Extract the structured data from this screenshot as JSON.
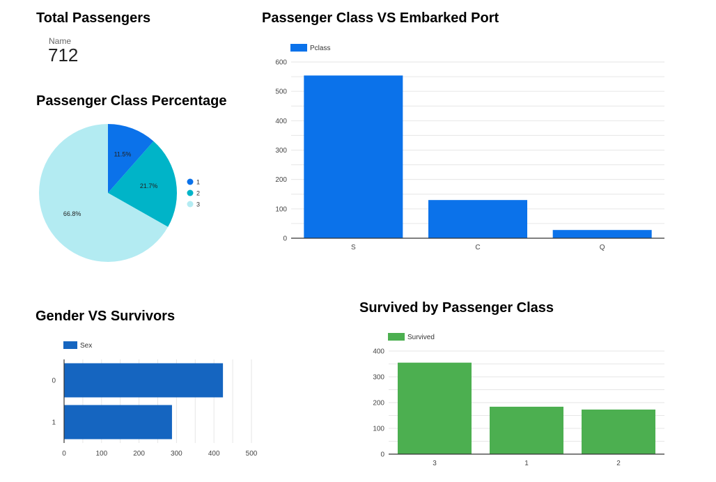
{
  "scorecard": {
    "title": "Total Passengers",
    "label": "Name",
    "value": "712"
  },
  "pie_title": "Passenger Class Percentage",
  "bar1_title": "Passenger Class VS Embarked Port",
  "hbar_title": "Gender VS Survivors",
  "bar2_title": "Survived by Passenger Class",
  "colors": {
    "blue": "#0b72ea",
    "teal": "#00b4c8",
    "lightcyan": "#b3ebf2",
    "hbar": "#1565c0",
    "green": "#4caf50",
    "grid": "#e6e6e6",
    "axis": "#333333",
    "tick": "#444444"
  },
  "chart_data": [
    {
      "type": "pie",
      "title": "Passenger Class Percentage",
      "slices": [
        {
          "label": "1",
          "value": 11.5,
          "display": "11.5%",
          "color": "#0b72ea"
        },
        {
          "label": "2",
          "value": 21.7,
          "display": "21.7%",
          "color": "#00b4c8"
        },
        {
          "label": "3",
          "value": 66.8,
          "display": "66.8%",
          "color": "#b3ebf2"
        }
      ],
      "legend_placement": "right"
    },
    {
      "type": "bar",
      "title": "Passenger Class VS Embarked Port",
      "categories": [
        "S",
        "C",
        "Q"
      ],
      "series": [
        {
          "name": "Pclass",
          "values": [
            554,
            130,
            28
          ]
        }
      ],
      "ylim": [
        0,
        600
      ],
      "yticks": [
        0,
        100,
        200,
        300,
        400,
        500,
        600
      ],
      "grid": true,
      "legend_placement": "top-left"
    },
    {
      "type": "bar",
      "orientation": "horizontal",
      "title": "Gender VS Survivors",
      "categories": [
        "0",
        "1"
      ],
      "series": [
        {
          "name": "Sex",
          "values": [
            424,
            288
          ]
        }
      ],
      "xlim": [
        0,
        500
      ],
      "xticks": [
        0,
        100,
        200,
        300,
        400,
        500
      ],
      "grid": true,
      "legend_placement": "top-left"
    },
    {
      "type": "bar",
      "title": "Survived by Passenger Class",
      "categories": [
        "3",
        "1",
        "2"
      ],
      "series": [
        {
          "name": "Survived",
          "values": [
            355,
            184,
            173
          ]
        }
      ],
      "ylim": [
        0,
        400
      ],
      "yticks": [
        0,
        100,
        200,
        300,
        400
      ],
      "grid": true,
      "legend_placement": "top-left"
    }
  ]
}
